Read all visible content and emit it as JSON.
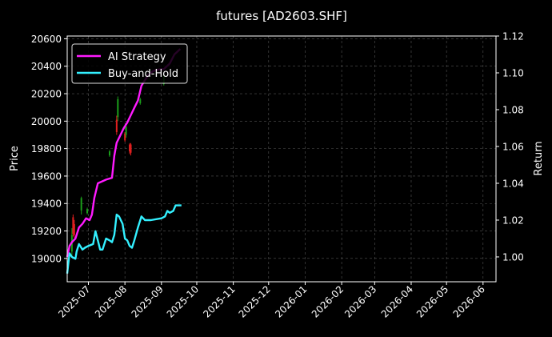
{
  "chart_data": {
    "type": "line",
    "title": "futures [AD2603.SHF]",
    "ylabel_left": "Price",
    "ylabel_right": "Return",
    "grid": true,
    "legend_placement": "top-left",
    "x_ticks": [
      "2025-07",
      "2025-08",
      "2025-09",
      "2025-10",
      "2025-11",
      "2025-12",
      "2026-01",
      "2026-02",
      "2026-03",
      "2026-04",
      "2026-05",
      "2026-06"
    ],
    "left_axis": {
      "ylim": [
        18830,
        20620
      ],
      "ticks": [
        19000,
        19200,
        19400,
        19600,
        19800,
        20000,
        20200,
        20400,
        20600
      ]
    },
    "right_axis": {
      "ylim": [
        0.9865,
        1.12
      ],
      "ticks": [
        "1.00",
        "1.02",
        "1.04",
        "1.06",
        "1.08",
        "1.10",
        "1.12"
      ]
    },
    "candles": [
      {
        "date": "2025-06-17",
        "open": 19050,
        "close": 19170,
        "high": 19220,
        "low": 19010,
        "dir": "up"
      },
      {
        "date": "2025-06-18",
        "open": 19300,
        "close": 19180,
        "high": 19320,
        "low": 19160,
        "dir": "down"
      },
      {
        "date": "2025-06-19",
        "open": 19250,
        "close": 19170,
        "high": 19280,
        "low": 19150,
        "dir": "down"
      },
      {
        "date": "2025-06-25",
        "open": 19350,
        "close": 19440,
        "high": 19450,
        "low": 19320,
        "dir": "up"
      },
      {
        "date": "2025-06-30",
        "open": 19330,
        "close": 19360,
        "high": 19370,
        "low": 19320,
        "dir": "up"
      },
      {
        "date": "2025-07-19",
        "open": 19750,
        "close": 19780,
        "high": 19790,
        "low": 19740,
        "dir": "up"
      },
      {
        "date": "2025-07-26",
        "open": 20030,
        "close": 20160,
        "high": 20180,
        "low": 20000,
        "dir": "up"
      },
      {
        "date": "2025-07-25",
        "open": 20010,
        "close": 19920,
        "high": 20040,
        "low": 19900,
        "dir": "down"
      },
      {
        "date": "2025-08-01",
        "open": 19910,
        "close": 19860,
        "high": 19920,
        "low": 19850,
        "dir": "down"
      },
      {
        "date": "2025-08-02",
        "open": 19900,
        "close": 19960,
        "high": 19980,
        "low": 19880,
        "dir": "up"
      },
      {
        "date": "2025-08-05",
        "open": 19830,
        "close": 19780,
        "high": 19840,
        "low": 19760,
        "dir": "down"
      },
      {
        "date": "2025-08-06",
        "open": 19830,
        "close": 19770,
        "high": 19840,
        "low": 19750,
        "dir": "down"
      },
      {
        "date": "2025-08-14",
        "open": 20130,
        "close": 20160,
        "high": 20170,
        "low": 20120,
        "dir": "up"
      },
      {
        "date": "2025-09-03",
        "open": 20270,
        "close": 20340,
        "high": 20350,
        "low": 20260,
        "dir": "up"
      }
    ],
    "series": [
      {
        "name": "AI Strategy",
        "color": "#ff1aff",
        "points": [
          [
            "2025-06-13",
            1.0
          ],
          [
            "2025-06-15",
            1.006
          ],
          [
            "2025-06-17",
            1.008
          ],
          [
            "2025-06-20",
            1.01
          ],
          [
            "2025-06-23",
            1.016
          ],
          [
            "2025-06-26",
            1.018
          ],
          [
            "2025-06-29",
            1.021
          ],
          [
            "2025-07-02",
            1.02
          ],
          [
            "2025-07-04",
            1.023
          ],
          [
            "2025-07-06",
            1.032
          ],
          [
            "2025-07-09",
            1.04
          ],
          [
            "2025-07-16",
            1.042
          ],
          [
            "2025-07-21",
            1.043
          ],
          [
            "2025-07-23",
            1.055
          ],
          [
            "2025-07-25",
            1.062
          ],
          [
            "2025-07-28",
            1.066
          ],
          [
            "2025-07-31",
            1.07
          ],
          [
            "2025-08-03",
            1.073
          ],
          [
            "2025-08-06",
            1.077
          ],
          [
            "2025-08-09",
            1.081
          ],
          [
            "2025-08-12",
            1.085
          ],
          [
            "2025-08-15",
            1.093
          ],
          [
            "2025-08-18",
            1.096
          ],
          [
            "2025-08-21",
            1.099
          ],
          [
            "2025-08-25",
            1.101
          ],
          [
            "2025-08-31",
            1.102
          ],
          [
            "2025-09-03",
            1.102
          ],
          [
            "2025-09-08",
            1.105
          ],
          [
            "2025-09-12",
            1.11
          ],
          [
            "2025-09-17",
            1.113
          ]
        ]
      },
      {
        "name": "Buy-and-Hold",
        "color": "#33f0ff",
        "points": [
          [
            "2025-06-13",
            0.991
          ],
          [
            "2025-06-15",
            1.002
          ],
          [
            "2025-06-17",
            1.0
          ],
          [
            "2025-06-20",
            0.999
          ],
          [
            "2025-06-21",
            1.003
          ],
          [
            "2025-06-23",
            1.007
          ],
          [
            "2025-06-26",
            1.004
          ],
          [
            "2025-06-28",
            1.005
          ],
          [
            "2025-07-01",
            1.006
          ],
          [
            "2025-07-05",
            1.007
          ],
          [
            "2025-07-07",
            1.014
          ],
          [
            "2025-07-09",
            1.009
          ],
          [
            "2025-07-11",
            1.004
          ],
          [
            "2025-07-13",
            1.004
          ],
          [
            "2025-07-16",
            1.01
          ],
          [
            "2025-07-19",
            1.009
          ],
          [
            "2025-07-21",
            1.008
          ],
          [
            "2025-07-23",
            1.012
          ],
          [
            "2025-07-25",
            1.023
          ],
          [
            "2025-07-27",
            1.022
          ],
          [
            "2025-07-30",
            1.018
          ],
          [
            "2025-08-01",
            1.01
          ],
          [
            "2025-08-03",
            1.009
          ],
          [
            "2025-08-05",
            1.006
          ],
          [
            "2025-08-07",
            1.005
          ],
          [
            "2025-08-09",
            1.009
          ],
          [
            "2025-08-12",
            1.016
          ],
          [
            "2025-08-15",
            1.022
          ],
          [
            "2025-08-18",
            1.02
          ],
          [
            "2025-08-23",
            1.02
          ],
          [
            "2025-09-01",
            1.021
          ],
          [
            "2025-09-04",
            1.022
          ],
          [
            "2025-09-06",
            1.025
          ],
          [
            "2025-09-08",
            1.024
          ],
          [
            "2025-09-11",
            1.025
          ],
          [
            "2025-09-13",
            1.028
          ],
          [
            "2025-09-18",
            1.028
          ]
        ]
      }
    ]
  }
}
